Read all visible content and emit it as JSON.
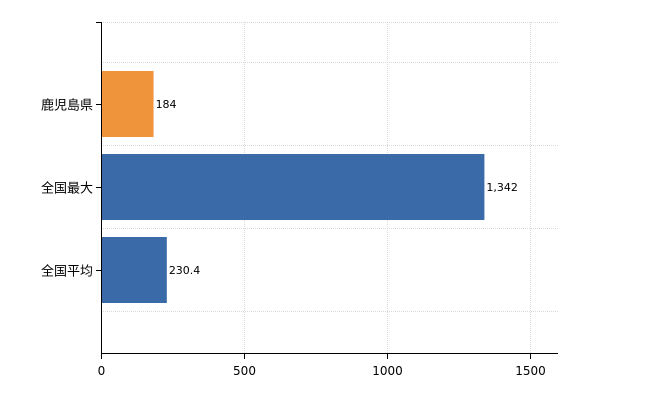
{
  "chart_data": {
    "type": "bar",
    "orientation": "horizontal",
    "categories": [
      "鹿児島県",
      "全国最大",
      "全国平均"
    ],
    "values": [
      184,
      1342,
      230.4
    ],
    "value_labels": [
      "184",
      "1,342",
      "230.4"
    ],
    "colors": [
      "#f0943b",
      "#3b6aa8",
      "#3b6aa8"
    ],
    "xlim": [
      0,
      1600
    ],
    "xticks": [
      0,
      500,
      1000,
      1500
    ],
    "xtick_labels": [
      "0",
      "500",
      "1000",
      "1500"
    ],
    "grid": true,
    "legend": "none",
    "title": "",
    "xlabel": "",
    "ylabel": ""
  }
}
